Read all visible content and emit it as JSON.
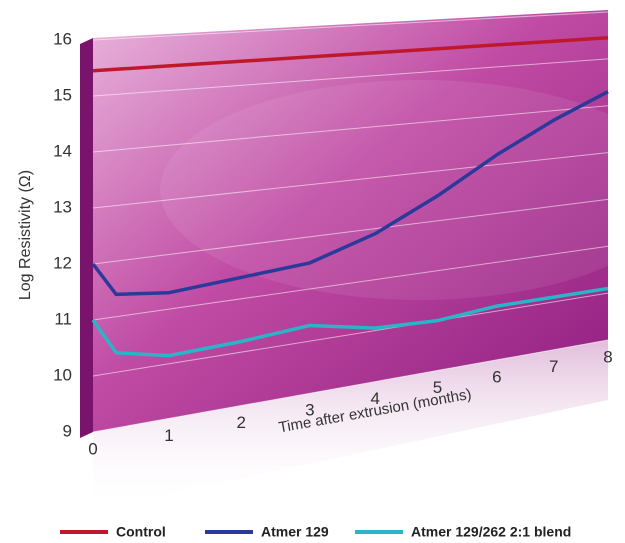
{
  "chart_data": {
    "type": "line",
    "x_label": "Time after extrusion (months)",
    "y_label": "Log Resistivity (Ω)",
    "x": [
      0,
      0.3,
      1,
      2,
      3,
      4,
      5,
      6,
      7,
      8
    ],
    "series": [
      {
        "name": "Control",
        "color": "#c0182b",
        "values": [
          15.45,
          15.45,
          15.45,
          15.45,
          15.45,
          15.45,
          15.45,
          15.45,
          15.45,
          15.45
        ]
      },
      {
        "name": "Atmer 129",
        "color": "#2b3a9a",
        "values": [
          12.0,
          11.4,
          11.3,
          11.4,
          11.5,
          11.9,
          12.5,
          13.2,
          13.8,
          14.3
        ]
      },
      {
        "name": "Atmer 129/262 2:1 blend",
        "color": "#2ab4c8",
        "values": [
          11.0,
          10.35,
          10.15,
          10.2,
          10.3,
          10.05,
          10.0,
          10.1,
          10.1,
          10.1
        ]
      }
    ],
    "xlim": [
      0,
      8
    ],
    "xticks": [
      0,
      1,
      2,
      3,
      4,
      5,
      6,
      7,
      8
    ],
    "ylim": [
      9,
      16
    ],
    "yticks": [
      9,
      10,
      11,
      12,
      13,
      14,
      15,
      16
    ],
    "grid": true
  }
}
